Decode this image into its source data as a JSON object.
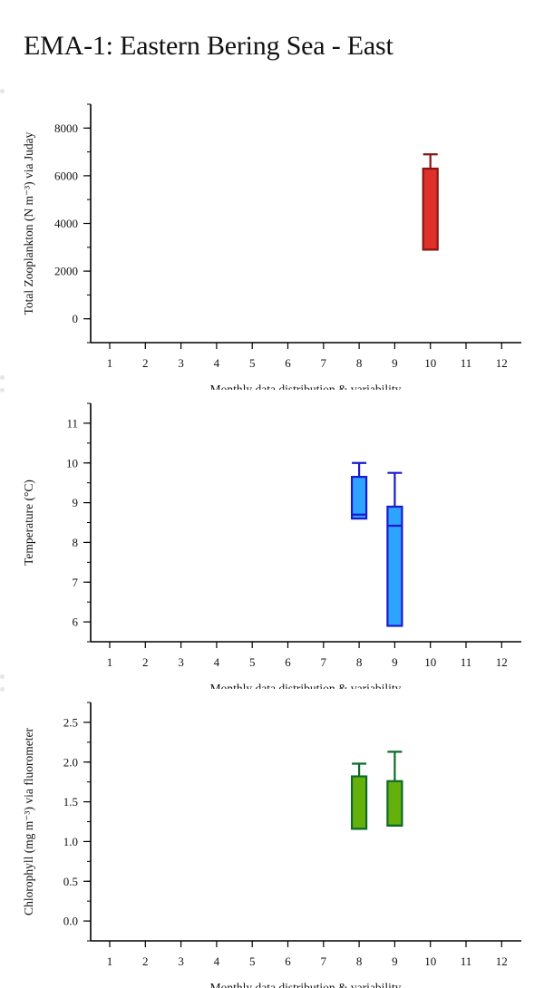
{
  "page": {
    "title": "EMA-1: Eastern Bering Sea - East"
  },
  "chart_data": [
    {
      "type": "box",
      "ylabel": "Total Zooplankton (N m⁻³) via Juday",
      "xlabel": "Monthly data distribution & variability",
      "categories": [
        1,
        2,
        3,
        4,
        5,
        6,
        7,
        8,
        9,
        10,
        11,
        12
      ],
      "ylim": [
        -1000,
        9000
      ],
      "yticks": [
        0,
        2000,
        4000,
        6000,
        8000
      ],
      "ytick_labels": [
        "0",
        "2000",
        "4000",
        "6000",
        "8000"
      ],
      "minor_step": 1000,
      "fill": "#e0302a",
      "stroke": "#8b1414",
      "boxes": [
        {
          "month": 10,
          "q1": 2900,
          "median": 2900,
          "q3": 6300,
          "whisker_low": 2900,
          "whisker_high": 6900
        }
      ]
    },
    {
      "type": "box",
      "ylabel": "Temperature (°C)",
      "xlabel": "Monthly data distribution & variability",
      "categories": [
        1,
        2,
        3,
        4,
        5,
        6,
        7,
        8,
        9,
        10,
        11,
        12
      ],
      "ylim": [
        5.5,
        11.5
      ],
      "yticks": [
        6,
        7,
        8,
        9,
        10,
        11
      ],
      "ytick_labels": [
        "6",
        "7",
        "8",
        "9",
        "10",
        "11"
      ],
      "minor_step": 0.5,
      "fill": "#2ea3ff",
      "stroke": "#1a1ad0",
      "boxes": [
        {
          "month": 8,
          "q1": 8.6,
          "median": 8.7,
          "q3": 9.65,
          "whisker_low": 8.6,
          "whisker_high": 10.0
        },
        {
          "month": 9,
          "q1": 5.9,
          "median": 8.42,
          "q3": 8.9,
          "whisker_low": 5.9,
          "whisker_high": 9.75
        }
      ]
    },
    {
      "type": "box",
      "ylabel": "Chlorophyll (mg m⁻³) via fluorometer",
      "xlabel": "Monthly data distribution & variability",
      "categories": [
        1,
        2,
        3,
        4,
        5,
        6,
        7,
        8,
        9,
        10,
        11,
        12
      ],
      "ylim": [
        -0.25,
        2.75
      ],
      "yticks": [
        0.0,
        0.5,
        1.0,
        1.5,
        2.0,
        2.5
      ],
      "ytick_labels": [
        "0.0",
        "0.5",
        "1.0",
        "1.5",
        "2.0",
        "2.5"
      ],
      "minor_step": 0.25,
      "fill": "#66b00c",
      "stroke": "#0f6a2a",
      "boxes": [
        {
          "month": 8,
          "q1": 1.16,
          "median": 1.16,
          "q3": 1.82,
          "whisker_low": 1.16,
          "whisker_high": 1.98
        },
        {
          "month": 9,
          "q1": 1.2,
          "median": 1.2,
          "q3": 1.76,
          "whisker_low": 1.2,
          "whisker_high": 2.13
        }
      ]
    }
  ]
}
